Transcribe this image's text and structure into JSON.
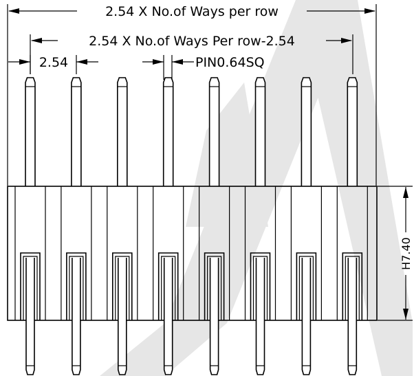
{
  "drawing": {
    "pin_count": 8,
    "watermark_color": "#e6e6e6"
  },
  "dimensions": {
    "overall_width": "2.54 X No.of Ways per row",
    "pin_span": "2.54 X No.of Ways Per row-2.54",
    "pitch": "2.54",
    "pin_size": "PIN0.64SQ",
    "housing_height": "H7.40"
  }
}
